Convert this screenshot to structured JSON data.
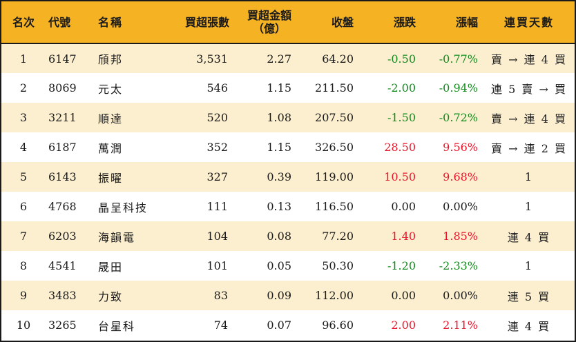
{
  "headers": {
    "rank": "名次",
    "code": "代號",
    "name": "名稱",
    "volume": "買超張數",
    "amount_line1": "買超金額",
    "amount_line2": "（億）",
    "close": "收盤",
    "change": "漲跌",
    "change_pct": "漲幅",
    "streak": "連買天數"
  },
  "colors": {
    "header_bg": "#f5b324",
    "stripe_bg": "#fcefcf",
    "up": "#e8152a",
    "down": "#138a1e"
  },
  "rows": [
    {
      "rank": "1",
      "code": "6147",
      "name": "頎邦",
      "volume": "3,531",
      "amount": "2.27",
      "close": "64.20",
      "change": "-0.50",
      "change_pct": "-0.77%",
      "streak": "賣 → 連 4 買",
      "trend": "down"
    },
    {
      "rank": "2",
      "code": "8069",
      "name": "元太",
      "volume": "546",
      "amount": "1.15",
      "close": "211.50",
      "change": "-2.00",
      "change_pct": "-0.94%",
      "streak": "連 5 賣 → 買",
      "trend": "down"
    },
    {
      "rank": "3",
      "code": "3211",
      "name": "順達",
      "volume": "520",
      "amount": "1.08",
      "close": "207.50",
      "change": "-1.50",
      "change_pct": "-0.72%",
      "streak": "賣 → 連 4 買",
      "trend": "down"
    },
    {
      "rank": "4",
      "code": "6187",
      "name": "萬潤",
      "volume": "352",
      "amount": "1.15",
      "close": "326.50",
      "change": "28.50",
      "change_pct": "9.56%",
      "streak": "賣 → 連 2 買",
      "trend": "up"
    },
    {
      "rank": "5",
      "code": "6143",
      "name": "振曜",
      "volume": "327",
      "amount": "0.39",
      "close": "119.00",
      "change": "10.50",
      "change_pct": "9.68%",
      "streak": "1",
      "trend": "up"
    },
    {
      "rank": "6",
      "code": "4768",
      "name": "晶呈科技",
      "volume": "111",
      "amount": "0.13",
      "close": "116.50",
      "change": "0.00",
      "change_pct": "0.00%",
      "streak": "1",
      "trend": "flat"
    },
    {
      "rank": "7",
      "code": "6203",
      "name": "海韻電",
      "volume": "104",
      "amount": "0.08",
      "close": "77.20",
      "change": "1.40",
      "change_pct": "1.85%",
      "streak": "連 4 買",
      "trend": "up"
    },
    {
      "rank": "8",
      "code": "4541",
      "name": "晟田",
      "volume": "101",
      "amount": "0.05",
      "close": "50.30",
      "change": "-1.20",
      "change_pct": "-2.33%",
      "streak": "1",
      "trend": "down"
    },
    {
      "rank": "9",
      "code": "3483",
      "name": "力致",
      "volume": "83",
      "amount": "0.09",
      "close": "112.00",
      "change": "0.00",
      "change_pct": "0.00%",
      "streak": "連 5 買",
      "trend": "flat"
    },
    {
      "rank": "10",
      "code": "3265",
      "name": "台星科",
      "volume": "74",
      "amount": "0.07",
      "close": "96.60",
      "change": "2.00",
      "change_pct": "2.11%",
      "streak": "連 4 買",
      "trend": "up"
    }
  ]
}
